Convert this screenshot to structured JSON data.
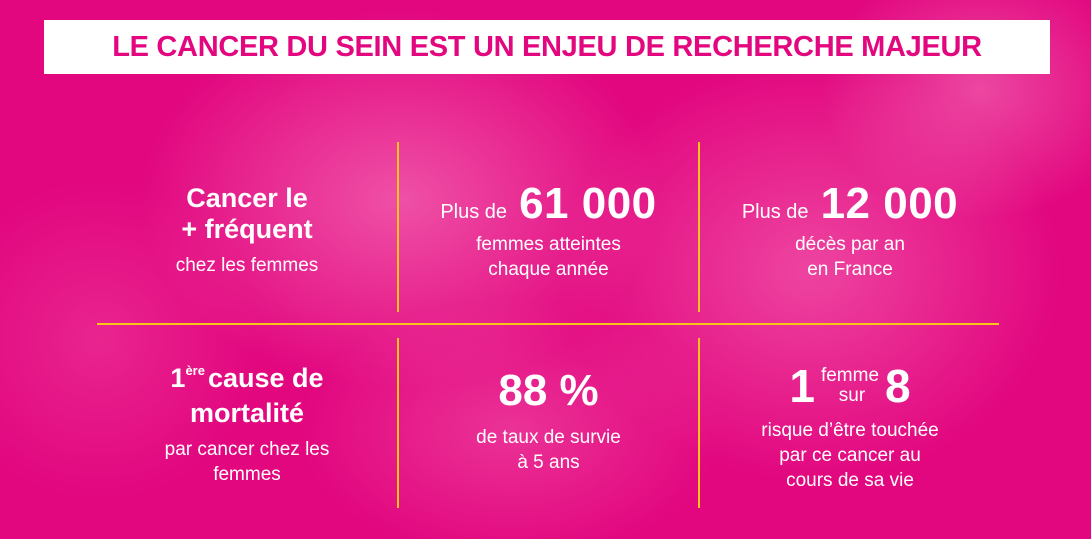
{
  "title": "LE CANCER DU SEIN EST UN ENJEU DE RECHERCHE MAJEUR",
  "colors": {
    "background": "#e2077f",
    "divider": "#f5c518",
    "title_text": "#e2077f",
    "title_box": "#ffffff"
  },
  "stats": {
    "frequent": {
      "line1": "Cancer le",
      "line2": "+ fréquent",
      "sub": "chez les femmes"
    },
    "women_affected": {
      "prefix": "Plus de",
      "value": "61 000",
      "sub1": "femmes atteintes",
      "sub2": "chaque année"
    },
    "deaths": {
      "prefix": "Plus de",
      "value": "12 000",
      "sub1": "décès par an",
      "sub2": "en France"
    },
    "mortality": {
      "ordinal": "1",
      "ordinal_suffix": "ère",
      "line1_rest": "cause de",
      "line2": "mortalité",
      "sub1": "par cancer chez les",
      "sub2": "femmes"
    },
    "survival": {
      "value": "88 %",
      "sub1": "de taux de survie",
      "sub2": "à 5 ans"
    },
    "risk": {
      "num1": "1",
      "word1": "femme",
      "word2": "sur",
      "num2": "8",
      "sub1": "risque d’être touchée",
      "sub2": "par ce cancer au",
      "sub3": "cours de sa vie"
    }
  }
}
